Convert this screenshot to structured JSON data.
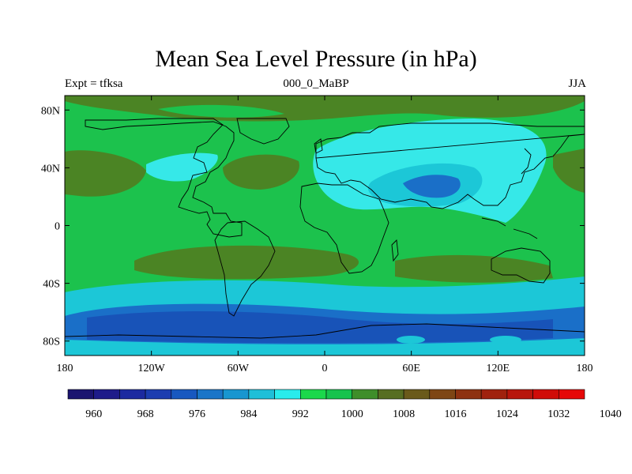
{
  "figure": {
    "title": "Mean Sea Level Pressure (in hPa)",
    "left_label": "Expt = tfksa",
    "center_label": "000_0_MaBP",
    "right_label": "JJA"
  },
  "axes": {
    "x_ticks": [
      "180",
      "120W",
      "60W",
      "0",
      "60E",
      "120E",
      "180"
    ],
    "y_ticks": [
      "80N",
      "40N",
      "0",
      "40S",
      "80S"
    ]
  },
  "colorbar": {
    "labels": [
      "960",
      "968",
      "976",
      "984",
      "992",
      "1000",
      "1008",
      "1016",
      "1024",
      "1032",
      "1040"
    ],
    "colors": [
      "#1b1470",
      "#1e1b8a",
      "#1c2aa0",
      "#1c3db0",
      "#1858c0",
      "#1a75c8",
      "#1896d0",
      "#1fbfd8",
      "#29ecec",
      "#1bd84b",
      "#17c34d",
      "#3f8e2a",
      "#576e22",
      "#6a5a1a",
      "#7e4614",
      "#8e3210",
      "#a0220e",
      "#b8160c",
      "#d00c08",
      "#e60808"
    ],
    "colors_legend": "fill sequence"
  },
  "colors": {
    "band_998": "#1cc7d7",
    "band_994": "#1a6fc8",
    "band_990": "#1853b8",
    "band_1006": "#1cc24d",
    "band_1014": "#4b8424",
    "band_1002": "#36e8e8"
  }
}
